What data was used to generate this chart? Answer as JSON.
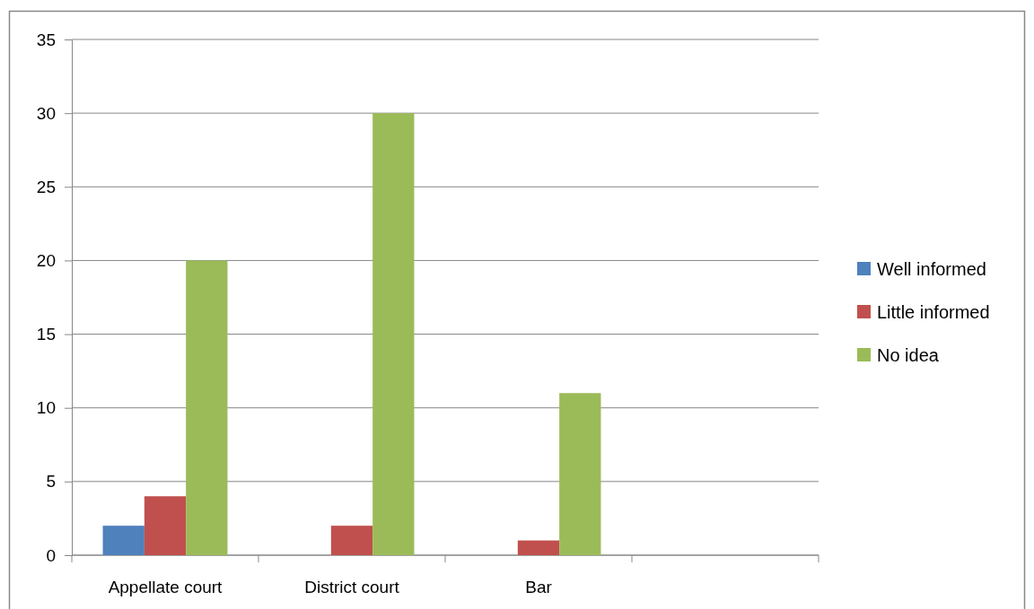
{
  "chart_data": {
    "type": "bar",
    "categories": [
      "Appellate court",
      "District court",
      "Bar",
      null
    ],
    "series": [
      {
        "name": "Well informed",
        "color": "#4f81bd",
        "values": [
          2,
          null,
          null,
          null
        ]
      },
      {
        "name": "Little informed",
        "color": "#c0504d",
        "values": [
          4,
          2,
          1,
          null
        ]
      },
      {
        "name": "No idea",
        "color": "#9bbb59",
        "values": [
          20,
          30,
          11,
          null
        ]
      }
    ],
    "ylim": [
      0,
      35
    ],
    "yticks": [
      0,
      5,
      10,
      15,
      20,
      25,
      30,
      35
    ],
    "grid": "y",
    "legend": "right"
  }
}
